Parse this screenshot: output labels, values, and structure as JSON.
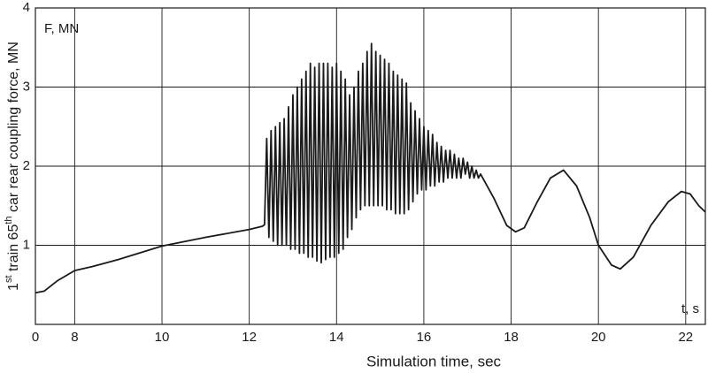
{
  "chart_data": {
    "type": "line",
    "xlabel": "Simulation time, sec",
    "ylabel": "1st train 65th car rear coupling force, MN",
    "annotations": [
      "F, MN",
      "t, s"
    ],
    "xlim": [
      7.1,
      22.45
    ],
    "ylim": [
      0,
      4
    ],
    "xticks": [
      8,
      10,
      12,
      14,
      16,
      18,
      20,
      22
    ],
    "yticks": [
      0,
      1,
      2,
      3,
      4
    ],
    "grid": true,
    "series": [
      {
        "color": "#1a1a1a",
        "x": [
          7.1,
          7.3,
          7.6,
          8.0,
          8.4,
          9.0,
          10.0,
          11.0,
          12.0,
          12.3,
          12.35,
          12.4,
          12.45,
          12.5,
          12.55,
          12.6,
          12.65,
          12.7,
          12.75,
          12.8,
          12.85,
          12.9,
          12.95,
          13.0,
          13.05,
          13.1,
          13.15,
          13.2,
          13.25,
          13.3,
          13.35,
          13.4,
          13.45,
          13.5,
          13.55,
          13.6,
          13.65,
          13.7,
          13.75,
          13.8,
          13.85,
          13.9,
          13.95,
          14.0,
          14.05,
          14.1,
          14.15,
          14.2,
          14.25,
          14.3,
          14.35,
          14.4,
          14.45,
          14.5,
          14.55,
          14.6,
          14.65,
          14.7,
          14.75,
          14.8,
          14.85,
          14.9,
          14.95,
          15.0,
          15.05,
          15.1,
          15.15,
          15.2,
          15.25,
          15.3,
          15.35,
          15.4,
          15.45,
          15.5,
          15.55,
          15.6,
          15.65,
          15.7,
          15.75,
          15.8,
          15.85,
          15.9,
          15.95,
          16.0,
          16.05,
          16.1,
          16.15,
          16.2,
          16.25,
          16.3,
          16.35,
          16.4,
          16.45,
          16.5,
          16.55,
          16.6,
          16.65,
          16.7,
          16.75,
          16.8,
          16.85,
          16.9,
          16.95,
          17.0,
          17.05,
          17.1,
          17.15,
          17.2,
          17.25,
          17.3,
          17.6,
          17.9,
          18.1,
          18.3,
          18.6,
          18.9,
          19.2,
          19.5,
          19.8,
          20.0,
          20.3,
          20.5,
          20.8,
          21.2,
          21.6,
          21.9,
          22.1,
          22.3,
          22.45
        ],
        "values": [
          0.4,
          0.42,
          0.55,
          0.68,
          0.73,
          0.82,
          0.99,
          1.1,
          1.2,
          1.24,
          1.26,
          2.35,
          1.1,
          2.45,
          1.05,
          2.5,
          1.0,
          2.55,
          1.0,
          2.6,
          1.0,
          2.75,
          0.95,
          2.9,
          0.95,
          3.0,
          0.9,
          3.1,
          0.9,
          3.2,
          0.85,
          3.3,
          0.85,
          3.25,
          0.8,
          3.3,
          0.78,
          3.3,
          0.82,
          3.3,
          0.85,
          3.25,
          0.85,
          3.3,
          0.9,
          3.2,
          0.95,
          3.1,
          1.1,
          2.9,
          1.2,
          3.0,
          1.35,
          3.2,
          1.45,
          3.3,
          1.5,
          3.45,
          1.5,
          3.55,
          1.5,
          3.45,
          1.5,
          3.4,
          1.5,
          3.35,
          1.45,
          3.3,
          1.45,
          3.2,
          1.4,
          3.15,
          1.4,
          3.1,
          1.4,
          3.05,
          1.45,
          2.8,
          1.55,
          2.7,
          1.65,
          2.6,
          1.7,
          2.5,
          1.7,
          2.45,
          1.75,
          2.4,
          1.75,
          2.3,
          1.8,
          2.25,
          1.8,
          2.2,
          1.85,
          2.2,
          1.85,
          2.15,
          1.85,
          2.1,
          1.85,
          2.1,
          1.9,
          2.05,
          1.85,
          2.0,
          1.85,
          1.95,
          1.85,
          1.9,
          1.6,
          1.25,
          1.17,
          1.22,
          1.55,
          1.85,
          1.95,
          1.75,
          1.35,
          1.0,
          0.75,
          0.7,
          0.85,
          1.25,
          1.55,
          1.68,
          1.65,
          1.5,
          1.42
        ]
      }
    ]
  }
}
